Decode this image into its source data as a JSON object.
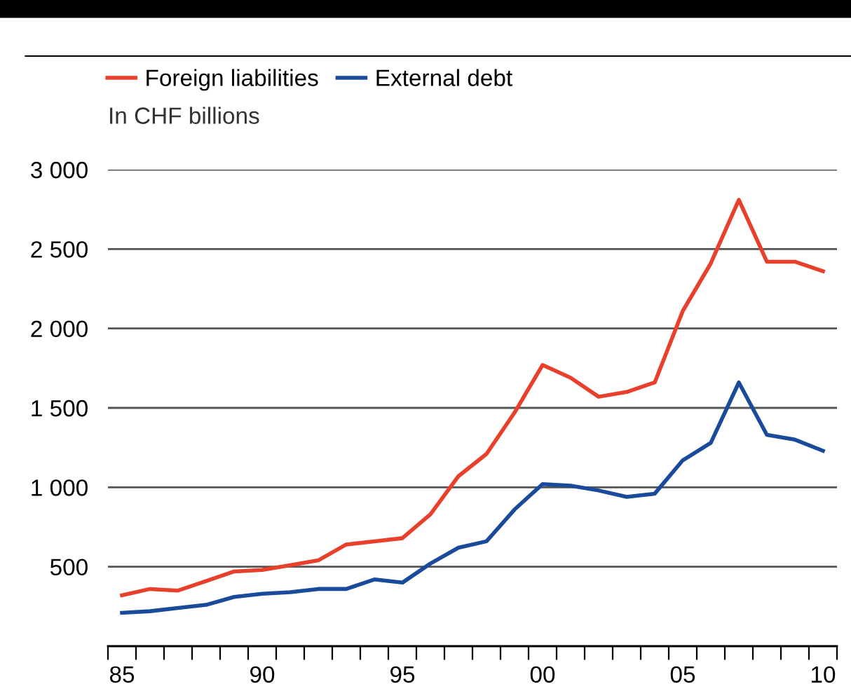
{
  "chart_data": {
    "type": "line",
    "ylabel": "In CHF billions",
    "categories": [
      "85",
      null,
      null,
      null,
      null,
      "90",
      null,
      null,
      null,
      null,
      "95",
      null,
      null,
      null,
      null,
      "00",
      null,
      null,
      null,
      null,
      "05",
      null,
      null,
      null,
      null,
      "10"
    ],
    "series": [
      {
        "name": "Foreign liabilities",
        "color": "#e8402a",
        "values": [
          320,
          360,
          350,
          410,
          470,
          480,
          510,
          540,
          640,
          660,
          680,
          830,
          1070,
          1210,
          1470,
          1770,
          1690,
          1570,
          1600,
          1660,
          2110,
          2410,
          2810,
          2420,
          2420,
          2360
        ]
      },
      {
        "name": "External debt",
        "color": "#1a4a9a",
        "values": [
          210,
          220,
          240,
          260,
          310,
          330,
          340,
          360,
          360,
          420,
          400,
          520,
          620,
          660,
          860,
          1020,
          1010,
          980,
          940,
          960,
          1170,
          1280,
          1660,
          1330,
          1300,
          1230
        ]
      }
    ],
    "ylim": [
      0,
      3000
    ],
    "yticks": [
      {
        "value": 500,
        "label": "500"
      },
      {
        "value": 1000,
        "label": "1 000"
      },
      {
        "value": 1500,
        "label": "1 500"
      },
      {
        "value": 2000,
        "label": "2 000"
      },
      {
        "value": 2500,
        "label": "2 500"
      },
      {
        "value": 3000,
        "label": "3 000"
      }
    ],
    "grid": "y",
    "legend": "top left",
    "marker": "none",
    "line_style": "solid"
  }
}
